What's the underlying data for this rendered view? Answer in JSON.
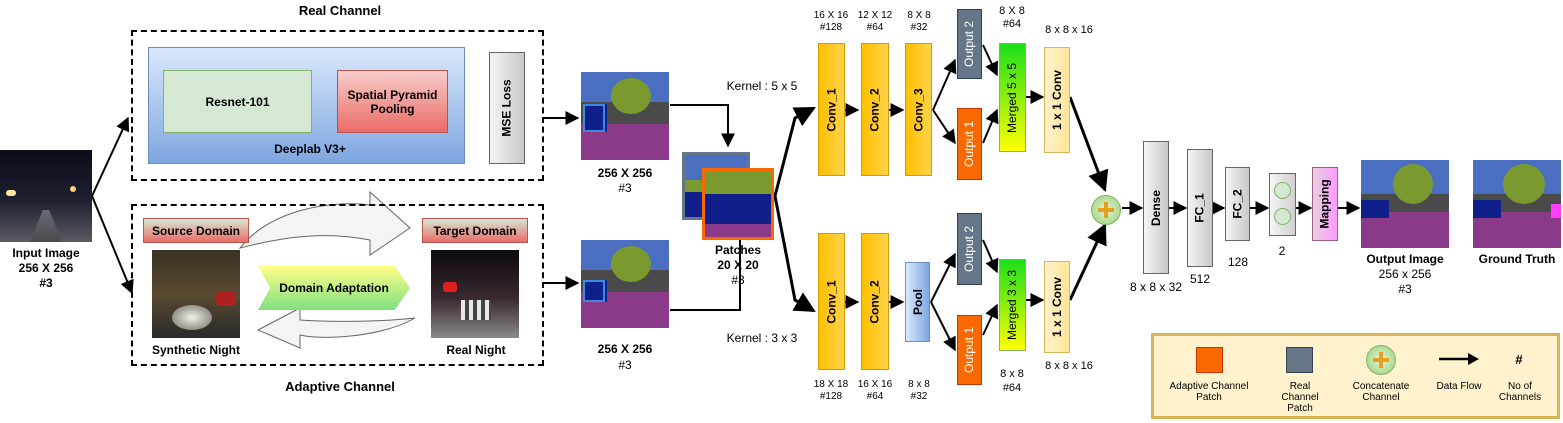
{
  "real_channel": {
    "title": "Real Channel",
    "resnet_label": "Resnet-101",
    "spp_label": "Spatial Pyramid Pooling",
    "deeplab_label": "Deeplab V3+",
    "mse_label": "MSE Loss"
  },
  "adaptive_channel": {
    "title": "Adaptive Channel",
    "source_domain_label": "Source Domain",
    "target_domain_label": "Target Domain",
    "domain_adaptation_label": "Domain Adaptation",
    "synthetic_night_label": "Synthetic Night",
    "real_night_label": "Real Night"
  },
  "input": {
    "line1": "Input Image",
    "line2": "256 X 256",
    "line3": "#3"
  },
  "seg_top": {
    "line1": "256 X 256",
    "line2": "#3"
  },
  "seg_bottom": {
    "line1": "256 X 256",
    "line2": "#3"
  },
  "patches": {
    "line1": "Patches",
    "line2": "20 X 20",
    "line3": "#3"
  },
  "top_branch": {
    "kernel_label": "Kernel : 5 x 5",
    "conv1": "Conv_1",
    "conv2": "Conv_2",
    "conv3": "Conv_3",
    "output2": "Output 2",
    "output1": "Output 1",
    "merged": "Merged 5 x 5",
    "conv1x1": "1 x 1 Conv",
    "dim_conv1_a": "16 X 16",
    "dim_conv1_b": "#128",
    "dim_conv2_a": "12 X 12",
    "dim_conv2_b": "#64",
    "dim_conv3_a": "8 X 8",
    "dim_conv3_b": "#32",
    "dim_merged_a": "8 X 8",
    "dim_merged_b": "#64",
    "dim_conv1x1": "8 x 8 x 16"
  },
  "bottom_branch": {
    "kernel_label": "Kernel : 3 x 3",
    "conv1": "Conv_1",
    "conv2": "Conv_2",
    "pool": "Pool",
    "output2": "Output 2",
    "output1": "Output 1",
    "merged": "Merged 3 x 3",
    "conv1x1": "1 x 1 Conv",
    "dim_conv1_a": "18 X 18",
    "dim_conv1_b": "#128",
    "dim_conv2_a": "16 X 16",
    "dim_conv2_b": "#64",
    "dim_pool_a": "8 x 8",
    "dim_pool_b": "#32",
    "dim_merged_a": "8 x 8",
    "dim_merged_b": "#64",
    "dim_conv1x1": "8 x 8 x 16"
  },
  "head": {
    "dense": "Dense",
    "fc1": "FC_1",
    "fc2": "FC_2",
    "mapping": "Mapping",
    "dense_dim": "8 x 8 x 32",
    "fc1_dim": "512",
    "fc2_dim": "128",
    "out_dim": "2"
  },
  "output": {
    "line1": "Output Image",
    "line2": "256 x 256",
    "line3": "#3"
  },
  "ground_truth": {
    "label": "Ground Truth"
  },
  "legend": {
    "adaptive_patch": "Adaptive Channel Patch",
    "real_patch": "Real Channel Patch",
    "concatenate": "Concatenate Channel",
    "data_flow": "Data Flow",
    "hash_symbol": "#",
    "num_channels": "No of Channels"
  },
  "colors": {
    "orange": "#fa6800",
    "slate": "#647687",
    "conv_yellow": "#ffc000",
    "deeplab_blue": "#7ea6e0",
    "legend_bg": "#fff2cc"
  }
}
